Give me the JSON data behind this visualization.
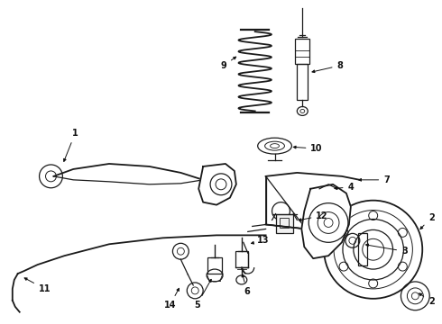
{
  "background_color": "#ffffff",
  "fig_width": 4.9,
  "fig_height": 3.6,
  "dpi": 100,
  "color": "#1a1a1a",
  "lw": 0.9,
  "lw_thick": 1.3
}
